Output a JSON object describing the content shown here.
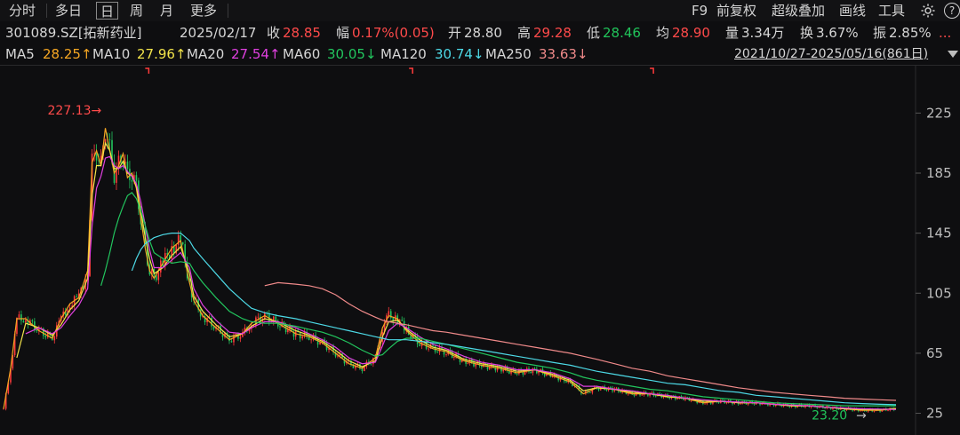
{
  "toolbar": {
    "tabs": [
      "分时",
      "多日",
      "日",
      "周",
      "月",
      "更多"
    ],
    "selected_tab": "日",
    "right": [
      "F9",
      "前复权",
      "超级叠加",
      "画线",
      "工具"
    ],
    "gear_icon": "gear-icon",
    "help_icon": "help-icon",
    "help_text": "?"
  },
  "info": {
    "code": "301089.SZ[拓新药业]",
    "date": "2025/02/17",
    "close_label": "收",
    "close": "28.85",
    "chg_label": "幅",
    "chg": "0.17%(0.05)",
    "open_label": "开",
    "open": "28.80",
    "high_label": "高",
    "high": "29.28",
    "low_label": "低",
    "low": "28.46",
    "avg_label": "均",
    "avg": "28.90",
    "vol_label": "量",
    "vol": "3.34万",
    "turn_label": "换",
    "turn": "3.67%",
    "amp_label": "振",
    "amp": "2.85%",
    "more": "..."
  },
  "ma_legend": [
    {
      "name": "MA5",
      "value": "28.25↑",
      "color": "#f5a623"
    },
    {
      "name": "MA10",
      "value": "27.96↑",
      "color": "#f2e34a"
    },
    {
      "name": "MA20",
      "value": "27.54↑",
      "color": "#e040e0"
    },
    {
      "name": "MA60",
      "value": "30.05↓",
      "color": "#22c55e"
    },
    {
      "name": "MA120",
      "value": "30.74↓",
      "color": "#4dd9e6"
    },
    {
      "name": "MA250",
      "value": "33.63↓",
      "color": "#f08a8a"
    }
  ],
  "date_range": "2021/10/27-2025/05/16(861日)",
  "colors": {
    "up": "#ff3b3b",
    "down": "#22c55e",
    "grid": "#2a2a2c",
    "axis_text": "#bdbdbd",
    "background": "#0e0e10"
  },
  "chart_data": {
    "type": "line",
    "title": "",
    "x": [
      0,
      8,
      15,
      25,
      40,
      55,
      65,
      75,
      85,
      95,
      100,
      105,
      110,
      115,
      120,
      125,
      130,
      135,
      140,
      145,
      150,
      155,
      160,
      165,
      170,
      180,
      190,
      200,
      210,
      215,
      225,
      240,
      255,
      270,
      280,
      295,
      310,
      330,
      345,
      360,
      375,
      390,
      405,
      420,
      428,
      435,
      445,
      455,
      470,
      485,
      500,
      520,
      540,
      560,
      580,
      600,
      620,
      640,
      655,
      670,
      690,
      710,
      730,
      750,
      770,
      790,
      810,
      830,
      850,
      870,
      890,
      910,
      930,
      950,
      970,
      990,
      1008
    ],
    "series": [
      {
        "name": "MA5",
        "color": "#f5a623",
        "values": [
          28,
          55,
          88,
          88,
          80,
          75,
          88,
          98,
          102,
          120,
          192,
          200,
          190,
          215,
          200,
          185,
          190,
          198,
          182,
          185,
          175,
          155,
          135,
          120,
          115,
          125,
          135,
          140,
          112,
          100,
          90,
          82,
          74,
          78,
          85,
          90,
          85,
          78,
          76,
          72,
          65,
          58,
          55,
          62,
          82,
          90,
          88,
          80,
          72,
          68,
          66,
          60,
          57,
          55,
          52,
          54,
          50,
          46,
          38,
          42,
          41,
          38,
          38,
          36,
          35,
          32,
          33,
          32,
          32,
          31,
          30,
          30,
          29,
          28,
          27,
          27,
          28.3
        ]
      },
      {
        "name": "MA10",
        "color": "#f2e34a",
        "values": [
          null,
          null,
          62,
          85,
          82,
          77,
          84,
          94,
          100,
          115,
          170,
          190,
          190,
          205,
          200,
          188,
          188,
          193,
          185,
          183,
          176,
          160,
          142,
          128,
          118,
          122,
          130,
          136,
          118,
          103,
          93,
          84,
          76,
          78,
          83,
          88,
          86,
          80,
          77,
          73,
          67,
          60,
          56,
          60,
          76,
          86,
          87,
          81,
          74,
          69,
          67,
          61,
          58,
          56,
          53,
          54,
          51,
          47,
          40,
          42,
          41,
          39,
          38,
          36,
          35,
          33,
          33,
          32,
          32,
          31,
          30,
          30,
          29,
          28,
          27.5,
          27.5,
          28
        ]
      },
      {
        "name": "MA20",
        "color": "#e040e0",
        "values": [
          null,
          null,
          null,
          78,
          82,
          78,
          82,
          90,
          97,
          108,
          150,
          175,
          183,
          195,
          196,
          190,
          188,
          190,
          186,
          183,
          178,
          166,
          150,
          134,
          122,
          122,
          127,
          132,
          122,
          108,
          97,
          87,
          79,
          78,
          82,
          86,
          86,
          82,
          78,
          74,
          69,
          62,
          58,
          59,
          70,
          80,
          85,
          82,
          76,
          71,
          68,
          63,
          59,
          57,
          54,
          54,
          52,
          48,
          43,
          43,
          41,
          40,
          38,
          37,
          35,
          34,
          33,
          32.5,
          32,
          31,
          30.5,
          30,
          29,
          28.5,
          28,
          27.8,
          27.5
        ]
      },
      {
        "name": "MA60",
        "color": "#22c55e",
        "values": [
          null,
          null,
          null,
          null,
          null,
          null,
          null,
          null,
          null,
          null,
          null,
          null,
          110,
          120,
          132,
          145,
          155,
          163,
          170,
          172,
          168,
          160,
          150,
          140,
          132,
          128,
          125,
          126,
          125,
          120,
          112,
          102,
          93,
          88,
          86,
          85,
          85,
          83,
          81,
          79,
          76,
          72,
          67,
          63,
          64,
          68,
          73,
          75,
          75,
          73,
          71,
          68,
          65,
          62,
          59,
          57,
          55,
          52,
          49,
          47,
          45,
          43,
          41,
          40,
          38,
          36,
          35,
          34,
          33,
          32,
          31.5,
          31,
          30.5,
          30,
          30,
          30,
          30
        ]
      },
      {
        "name": "MA120",
        "color": "#4dd9e6",
        "values": [
          null,
          null,
          null,
          null,
          null,
          null,
          null,
          null,
          null,
          null,
          null,
          null,
          null,
          null,
          null,
          null,
          null,
          null,
          null,
          120,
          128,
          134,
          138,
          140,
          142,
          144,
          145,
          145,
          140,
          135,
          128,
          118,
          108,
          100,
          95,
          92,
          90,
          88,
          86,
          84,
          82,
          80,
          78,
          76,
          75,
          74,
          74,
          74,
          73,
          72,
          71,
          69,
          67,
          65,
          63,
          61,
          59,
          57,
          55,
          53,
          51,
          49,
          47,
          45,
          44,
          42,
          40,
          39,
          37,
          36,
          35,
          34,
          33,
          32,
          31.5,
          31,
          30.7
        ]
      },
      {
        "name": "MA250",
        "color": "#f08a8a",
        "values": [
          null,
          null,
          null,
          null,
          null,
          null,
          null,
          null,
          null,
          null,
          null,
          null,
          null,
          null,
          null,
          null,
          null,
          null,
          null,
          null,
          null,
          null,
          null,
          null,
          null,
          null,
          null,
          null,
          null,
          null,
          null,
          null,
          null,
          null,
          null,
          110,
          112,
          111,
          110,
          108,
          104,
          98,
          93,
          89,
          87,
          86,
          85,
          84,
          82,
          80,
          79,
          77,
          75,
          73,
          71,
          69,
          67,
          65,
          63,
          61,
          58,
          55,
          53,
          50,
          48,
          46,
          44,
          42,
          40.5,
          39,
          38,
          37,
          36,
          35,
          34.5,
          34,
          33.6
        ]
      }
    ],
    "ylim": [
      20,
      240
    ],
    "yticks": [
      25,
      65,
      105,
      145,
      185,
      225
    ],
    "annotations": [
      {
        "text": "227.13→",
        "x": 120,
        "y": 227.13,
        "color": "#ff4a4a"
      },
      {
        "text": "23.20",
        "x": 975,
        "y": 23.2,
        "color": "#21c45a"
      },
      {
        "text": "→",
        "x": 975,
        "y": 23.2,
        "color": "#bdbdbd"
      }
    ],
    "markers": [
      {
        "x": 160
      },
      {
        "x": 458
      },
      {
        "x": 730
      }
    ],
    "grid": false
  }
}
